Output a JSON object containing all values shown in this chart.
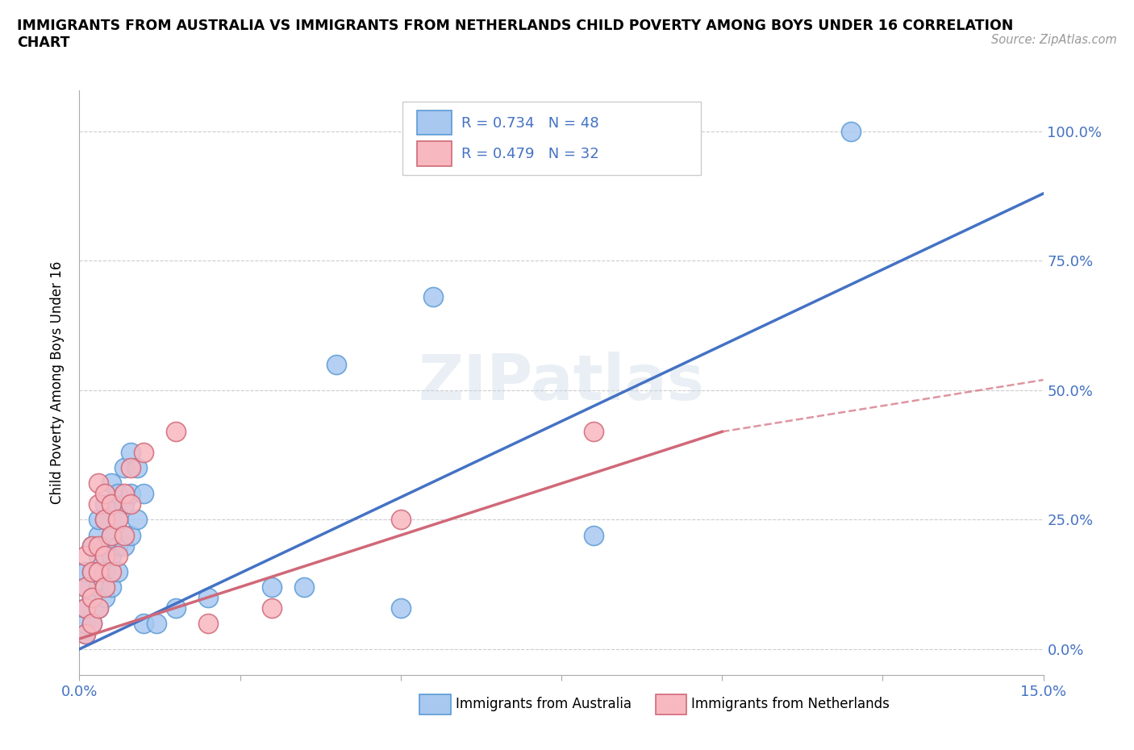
{
  "title": "IMMIGRANTS FROM AUSTRALIA VS IMMIGRANTS FROM NETHERLANDS CHILD POVERTY AMONG BOYS UNDER 16 CORRELATION\nCHART",
  "source": "Source: ZipAtlas.com",
  "ylabel": "Child Poverty Among Boys Under 16",
  "yticks": [
    "0.0%",
    "25.0%",
    "50.0%",
    "75.0%",
    "100.0%"
  ],
  "ytick_vals": [
    0.0,
    0.25,
    0.5,
    0.75,
    1.0
  ],
  "xmin": 0.0,
  "xmax": 0.15,
  "ymin": -0.05,
  "ymax": 1.08,
  "watermark": "ZIPatlas",
  "aus_color": "#a8c8f0",
  "aus_border": "#5b9bd5",
  "aus_line_color": "#4472c4",
  "nld_color": "#f8b8c0",
  "nld_border": "#d06878",
  "nld_line_color": "#d06878",
  "aus_R": "0.734",
  "aus_N": "48",
  "nld_R": "0.479",
  "nld_N": "32",
  "aus_trend": [
    0.0,
    0.15,
    0.0,
    0.88
  ],
  "nld_trend": [
    0.0,
    0.1,
    0.02,
    0.42
  ],
  "nld_trend_ext": [
    0.1,
    0.15,
    0.42,
    0.52
  ],
  "aus_points": [
    [
      0.001,
      0.03
    ],
    [
      0.001,
      0.05
    ],
    [
      0.001,
      0.08
    ],
    [
      0.001,
      0.12
    ],
    [
      0.001,
      0.15
    ],
    [
      0.002,
      0.05
    ],
    [
      0.002,
      0.1
    ],
    [
      0.002,
      0.15
    ],
    [
      0.002,
      0.2
    ],
    [
      0.003,
      0.08
    ],
    [
      0.003,
      0.12
    ],
    [
      0.003,
      0.18
    ],
    [
      0.003,
      0.22
    ],
    [
      0.003,
      0.25
    ],
    [
      0.004,
      0.1
    ],
    [
      0.004,
      0.15
    ],
    [
      0.004,
      0.2
    ],
    [
      0.004,
      0.25
    ],
    [
      0.004,
      0.28
    ],
    [
      0.005,
      0.12
    ],
    [
      0.005,
      0.18
    ],
    [
      0.005,
      0.22
    ],
    [
      0.005,
      0.28
    ],
    [
      0.005,
      0.32
    ],
    [
      0.006,
      0.15
    ],
    [
      0.006,
      0.2
    ],
    [
      0.006,
      0.25
    ],
    [
      0.006,
      0.3
    ],
    [
      0.007,
      0.2
    ],
    [
      0.007,
      0.28
    ],
    [
      0.007,
      0.35
    ],
    [
      0.008,
      0.22
    ],
    [
      0.008,
      0.3
    ],
    [
      0.008,
      0.38
    ],
    [
      0.009,
      0.25
    ],
    [
      0.009,
      0.35
    ],
    [
      0.01,
      0.3
    ],
    [
      0.01,
      0.05
    ],
    [
      0.012,
      0.05
    ],
    [
      0.015,
      0.08
    ],
    [
      0.02,
      0.1
    ],
    [
      0.03,
      0.12
    ],
    [
      0.035,
      0.12
    ],
    [
      0.04,
      0.55
    ],
    [
      0.05,
      0.08
    ],
    [
      0.055,
      0.68
    ],
    [
      0.08,
      0.22
    ],
    [
      0.12,
      1.0
    ]
  ],
  "nld_points": [
    [
      0.001,
      0.03
    ],
    [
      0.001,
      0.08
    ],
    [
      0.001,
      0.12
    ],
    [
      0.001,
      0.18
    ],
    [
      0.002,
      0.05
    ],
    [
      0.002,
      0.1
    ],
    [
      0.002,
      0.15
    ],
    [
      0.002,
      0.2
    ],
    [
      0.003,
      0.08
    ],
    [
      0.003,
      0.15
    ],
    [
      0.003,
      0.2
    ],
    [
      0.003,
      0.28
    ],
    [
      0.003,
      0.32
    ],
    [
      0.004,
      0.12
    ],
    [
      0.004,
      0.18
    ],
    [
      0.004,
      0.25
    ],
    [
      0.004,
      0.3
    ],
    [
      0.005,
      0.15
    ],
    [
      0.005,
      0.22
    ],
    [
      0.005,
      0.28
    ],
    [
      0.006,
      0.18
    ],
    [
      0.006,
      0.25
    ],
    [
      0.007,
      0.22
    ],
    [
      0.007,
      0.3
    ],
    [
      0.008,
      0.28
    ],
    [
      0.008,
      0.35
    ],
    [
      0.01,
      0.38
    ],
    [
      0.015,
      0.42
    ],
    [
      0.02,
      0.05
    ],
    [
      0.03,
      0.08
    ],
    [
      0.05,
      0.25
    ],
    [
      0.08,
      0.42
    ]
  ]
}
